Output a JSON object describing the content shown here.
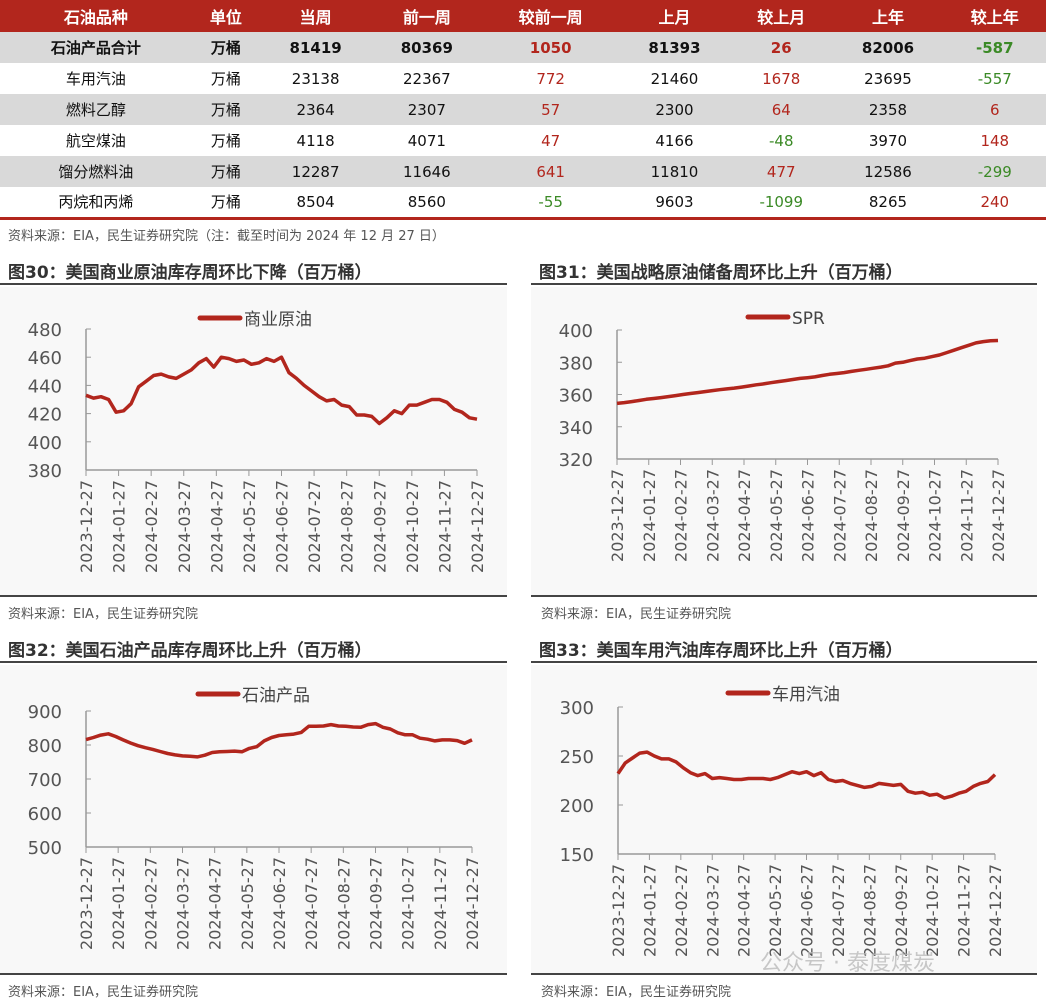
{
  "table": {
    "headers": [
      "石油品种",
      "单位",
      "当周",
      "前一周",
      "较前一周",
      "上月",
      "较上月",
      "上年",
      "较上年"
    ],
    "rows": [
      [
        "石油产品合计",
        "万桶",
        "81419",
        "80369",
        "1050",
        "81393",
        "26",
        "82006",
        "-587"
      ],
      [
        "车用汽油",
        "万桶",
        "23138",
        "22367",
        "772",
        "21460",
        "1678",
        "23695",
        "-557"
      ],
      [
        "燃料乙醇",
        "万桶",
        "2364",
        "2307",
        "57",
        "2300",
        "64",
        "2358",
        "6"
      ],
      [
        "航空煤油",
        "万桶",
        "4118",
        "4071",
        "47",
        "4166",
        "-48",
        "3970",
        "148"
      ],
      [
        "馏分燃料油",
        "万桶",
        "12287",
        "11646",
        "641",
        "11810",
        "477",
        "12586",
        "-299"
      ],
      [
        "丙烷和丙烯",
        "万桶",
        "8504",
        "8560",
        "-55",
        "9603",
        "-1099",
        "8265",
        "240"
      ]
    ],
    "source": "资料来源：EIA，民生证券研究院（注：截至时间为 2024 年 12 月 27 日）"
  },
  "colors": {
    "up": "#b2261d",
    "down": "#3b8a26",
    "header": "#b2261d",
    "line": "#b2261d"
  },
  "watermark": "公众号 · 泰度煤炭",
  "chart_data": [
    {
      "type": "line",
      "title": "图30：美国商业原油库存周环比下降（百万桶）",
      "source": "资料来源：EIA，民生证券研究院",
      "ylim": [
        380,
        480
      ],
      "yticks": [
        380,
        400,
        420,
        440,
        460,
        480
      ],
      "xticks": [
        "2023-12-27",
        "2024-01-27",
        "2024-02-27",
        "2024-03-27",
        "2024-04-27",
        "2024-05-27",
        "2024-06-27",
        "2024-07-27",
        "2024-08-27",
        "2024-09-27",
        "2024-10-27",
        "2024-11-27",
        "2024-12-27"
      ],
      "series": [
        {
          "name": "商业原油",
          "values": [
            433,
            431,
            432,
            430,
            421,
            422,
            427,
            439,
            443,
            447,
            448,
            446,
            445,
            448,
            451,
            456,
            459,
            453,
            460,
            459,
            457,
            458,
            455,
            456,
            459,
            457,
            460,
            449,
            445,
            440,
            436,
            432,
            429,
            430,
            426,
            425,
            419,
            419,
            418,
            413,
            417,
            422,
            420,
            426,
            426,
            428,
            430,
            430,
            428,
            423,
            421,
            417,
            416
          ]
        }
      ]
    },
    {
      "type": "line",
      "title": "图31：美国战略原油储备周环比上升（百万桶）",
      "source": "资料来源：EIA，民生证券研究院",
      "ylim": [
        320,
        400
      ],
      "yticks": [
        320,
        340,
        360,
        380,
        400
      ],
      "xticks": [
        "2023-12-27",
        "2024-01-27",
        "2024-02-27",
        "2024-03-27",
        "2024-04-27",
        "2024-05-27",
        "2024-06-27",
        "2024-07-27",
        "2024-08-27",
        "2024-09-27",
        "2024-10-27",
        "2024-11-27",
        "2024-12-27"
      ],
      "series": [
        {
          "name": "SPR",
          "values": [
            354.5,
            355,
            355.6,
            356.3,
            357,
            357.5,
            358.1,
            358.7,
            359.3,
            360,
            360.6,
            361.2,
            361.8,
            362.4,
            363,
            363.5,
            364,
            364.6,
            365.3,
            366,
            366.6,
            367.3,
            368,
            368.6,
            369.3,
            370,
            370.4,
            370.9,
            371.8,
            372.5,
            373,
            373.6,
            374.3,
            375,
            375.6,
            376.3,
            377,
            377.8,
            379.5,
            380,
            381,
            382,
            382.5,
            383.5,
            384.5,
            386,
            387.5,
            389,
            390.5,
            392,
            392.8,
            393.3,
            393.5
          ]
        }
      ]
    },
    {
      "type": "line",
      "title": "图32：美国石油产品库存周环比上升（百万桶）",
      "source": "资料来源：EIA，民生证券研究院",
      "ylim": [
        500,
        900
      ],
      "yticks": [
        500,
        600,
        700,
        800,
        900
      ],
      "xticks": [
        "2023-12-27",
        "2024-01-27",
        "2024-02-27",
        "2024-03-27",
        "2024-04-27",
        "2024-05-27",
        "2024-06-27",
        "2024-07-27",
        "2024-08-27",
        "2024-09-27",
        "2024-10-27",
        "2024-11-27",
        "2024-12-27"
      ],
      "series": [
        {
          "name": "石油产品",
          "values": [
            816,
            822,
            829,
            833,
            825,
            815,
            806,
            798,
            792,
            787,
            781,
            775,
            771,
            768,
            767,
            765,
            770,
            778,
            780,
            781,
            782,
            780,
            790,
            795,
            812,
            822,
            828,
            830,
            832,
            837,
            855,
            855,
            856,
            860,
            856,
            855,
            853,
            852,
            860,
            863,
            852,
            847,
            836,
            830,
            830,
            820,
            817,
            812,
            815,
            815,
            813,
            805,
            815
          ]
        }
      ]
    },
    {
      "type": "line",
      "title": "图33：美国车用汽油库存周环比上升（百万桶）",
      "source": "资料来源：EIA，民生证券研究院",
      "ylim": [
        150,
        300
      ],
      "yticks": [
        150,
        200,
        250,
        300
      ],
      "xticks": [
        "2023-12-27",
        "2024-01-27",
        "2024-02-27",
        "2024-03-27",
        "2024-04-27",
        "2024-05-27",
        "2024-06-27",
        "2024-07-27",
        "2024-08-27",
        "2024-09-27",
        "2024-10-27",
        "2024-11-27",
        "2024-12-27"
      ],
      "series": [
        {
          "name": "车用汽油",
          "values": [
            232,
            243,
            248,
            253,
            254,
            250,
            247,
            247,
            244,
            238,
            233,
            230,
            232,
            227,
            228,
            227,
            226,
            226,
            227,
            227,
            227,
            226,
            228,
            231,
            234,
            232,
            234,
            230,
            233,
            226,
            224,
            225,
            222,
            220,
            218,
            219,
            222,
            221,
            220,
            221,
            214,
            212,
            213,
            210,
            211,
            207,
            209,
            212,
            214,
            219,
            222,
            224,
            231
          ]
        }
      ]
    }
  ]
}
